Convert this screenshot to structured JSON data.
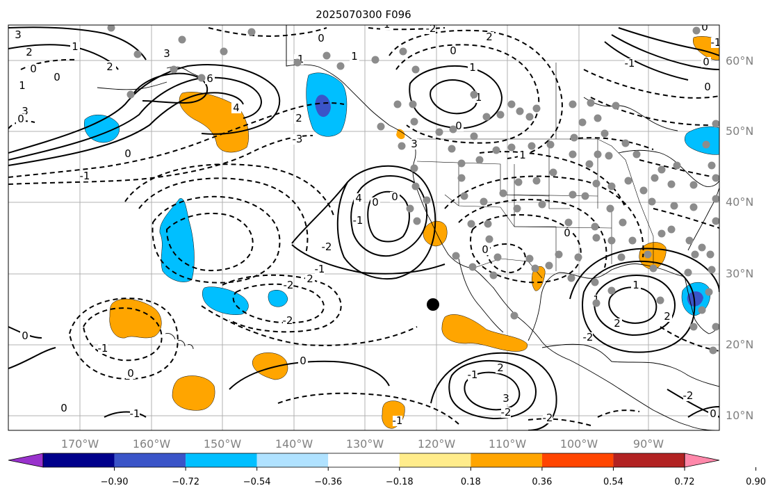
{
  "title": "2025070300 F096",
  "map": {
    "lon_labels": [
      "170°W",
      "160°W",
      "150°W",
      "140°W",
      "130°W",
      "120°W",
      "110°W",
      "100°W",
      "90°W"
    ],
    "lat_labels": [
      "60°N",
      "50°N",
      "40°N",
      "30°N",
      "20°N",
      "10°N"
    ],
    "lon_range": [
      -180,
      -80
    ],
    "lat_range": [
      8,
      65
    ],
    "contour_labels": [
      "3",
      "2",
      "0",
      "1",
      "3",
      "4",
      "-1",
      "-2",
      "0",
      "6",
      "4",
      "2",
      "-3",
      "0",
      "-1",
      "3",
      "2",
      "1",
      "0",
      "-1",
      "-2",
      "-1",
      "0",
      "2",
      "-2",
      "-2",
      "0",
      "-1",
      "0",
      "2",
      "3",
      "-1",
      "0",
      "-2",
      "-2",
      "-1",
      "-1",
      "0",
      "1",
      "2",
      "-2",
      "1",
      "2",
      "0",
      "1",
      "-2",
      "0",
      "0",
      "-1",
      "0",
      "-1",
      "0",
      "0",
      "1",
      "-1",
      "0",
      "4",
      "3",
      "2",
      "0",
      "1",
      "-1",
      "0",
      "0"
    ],
    "colors": {
      "positive_fill": "#ffa500",
      "negative_fill": "#00bfff",
      "strong_negative_fill": "#3a54c8",
      "station": "#8c8c8c"
    }
  },
  "colorbar": {
    "ticks": [
      "−0.90",
      "−0.72",
      "−0.54",
      "−0.36",
      "−0.18",
      "0.18",
      "0.36",
      "0.54",
      "0.72",
      "0.90"
    ],
    "colors": [
      "#9932cc",
      "#00008b",
      "#3a54c8",
      "#00bfff",
      "#b0e2ff",
      "#ffffff",
      "#ffec8b",
      "#ffa500",
      "#ff4500",
      "#b22222",
      "#ff88aa"
    ]
  }
}
